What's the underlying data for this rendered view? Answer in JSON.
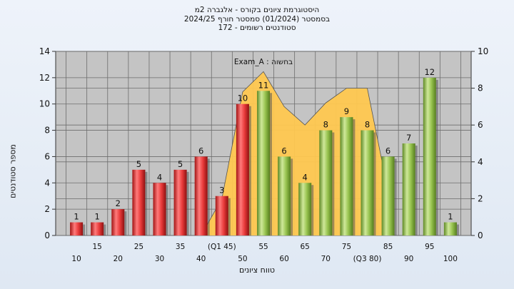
{
  "header": {
    "line1": "היסטוגרמת ציונים בקורס - אלגברה 2מ",
    "line2": "בסמסטר  (01/2024)  סמסטר חורף  2024/25",
    "line3": "סטודנטים רשומים - 172"
  },
  "axes": {
    "ylabel": "מספר סטודנטים",
    "xlabel": "טווח ציונים"
  },
  "colors": {
    "fail_bar": "#e83a3a",
    "pass_bar": "#97c34f",
    "distribution_area": "#ffc850",
    "plot_bg": "#c4c4c4"
  },
  "chart_data": {
    "type": "bar",
    "annotation": "Exam_A : בחשוה",
    "x_tick_labels": [
      "10",
      "15",
      "20",
      "25",
      "30",
      "35",
      "40",
      "(Q1 45)",
      "50",
      "55",
      "60",
      "65",
      "70",
      "75",
      "(Q3 80)",
      "85",
      "90",
      "95",
      "100"
    ],
    "values": [
      1,
      1,
      2,
      5,
      4,
      5,
      6,
      3,
      10,
      11,
      6,
      4,
      8,
      9,
      8,
      6,
      7,
      12,
      1
    ],
    "bar_colors": [
      "fail",
      "fail",
      "fail",
      "fail",
      "fail",
      "fail",
      "fail",
      "fail",
      "fail",
      "pass",
      "pass",
      "pass",
      "pass",
      "pass",
      "pass",
      "pass",
      "pass",
      "pass",
      "pass"
    ],
    "ylim_left": [
      0,
      14
    ],
    "yticks_left": [
      0,
      2,
      4,
      6,
      8,
      10,
      12,
      14
    ],
    "ylim_right": [
      0,
      10
    ],
    "yticks_right": [
      0,
      2,
      4,
      6,
      8,
      10
    ],
    "area_series": {
      "x_start": 40,
      "x": [
        40,
        45,
        50,
        55,
        60,
        65,
        70,
        75,
        80,
        85
      ],
      "values": [
        0,
        2.0,
        7.8,
        8.9,
        7.0,
        6.0,
        7.2,
        8.0,
        8.0,
        2.4
      ]
    },
    "grid": true
  }
}
